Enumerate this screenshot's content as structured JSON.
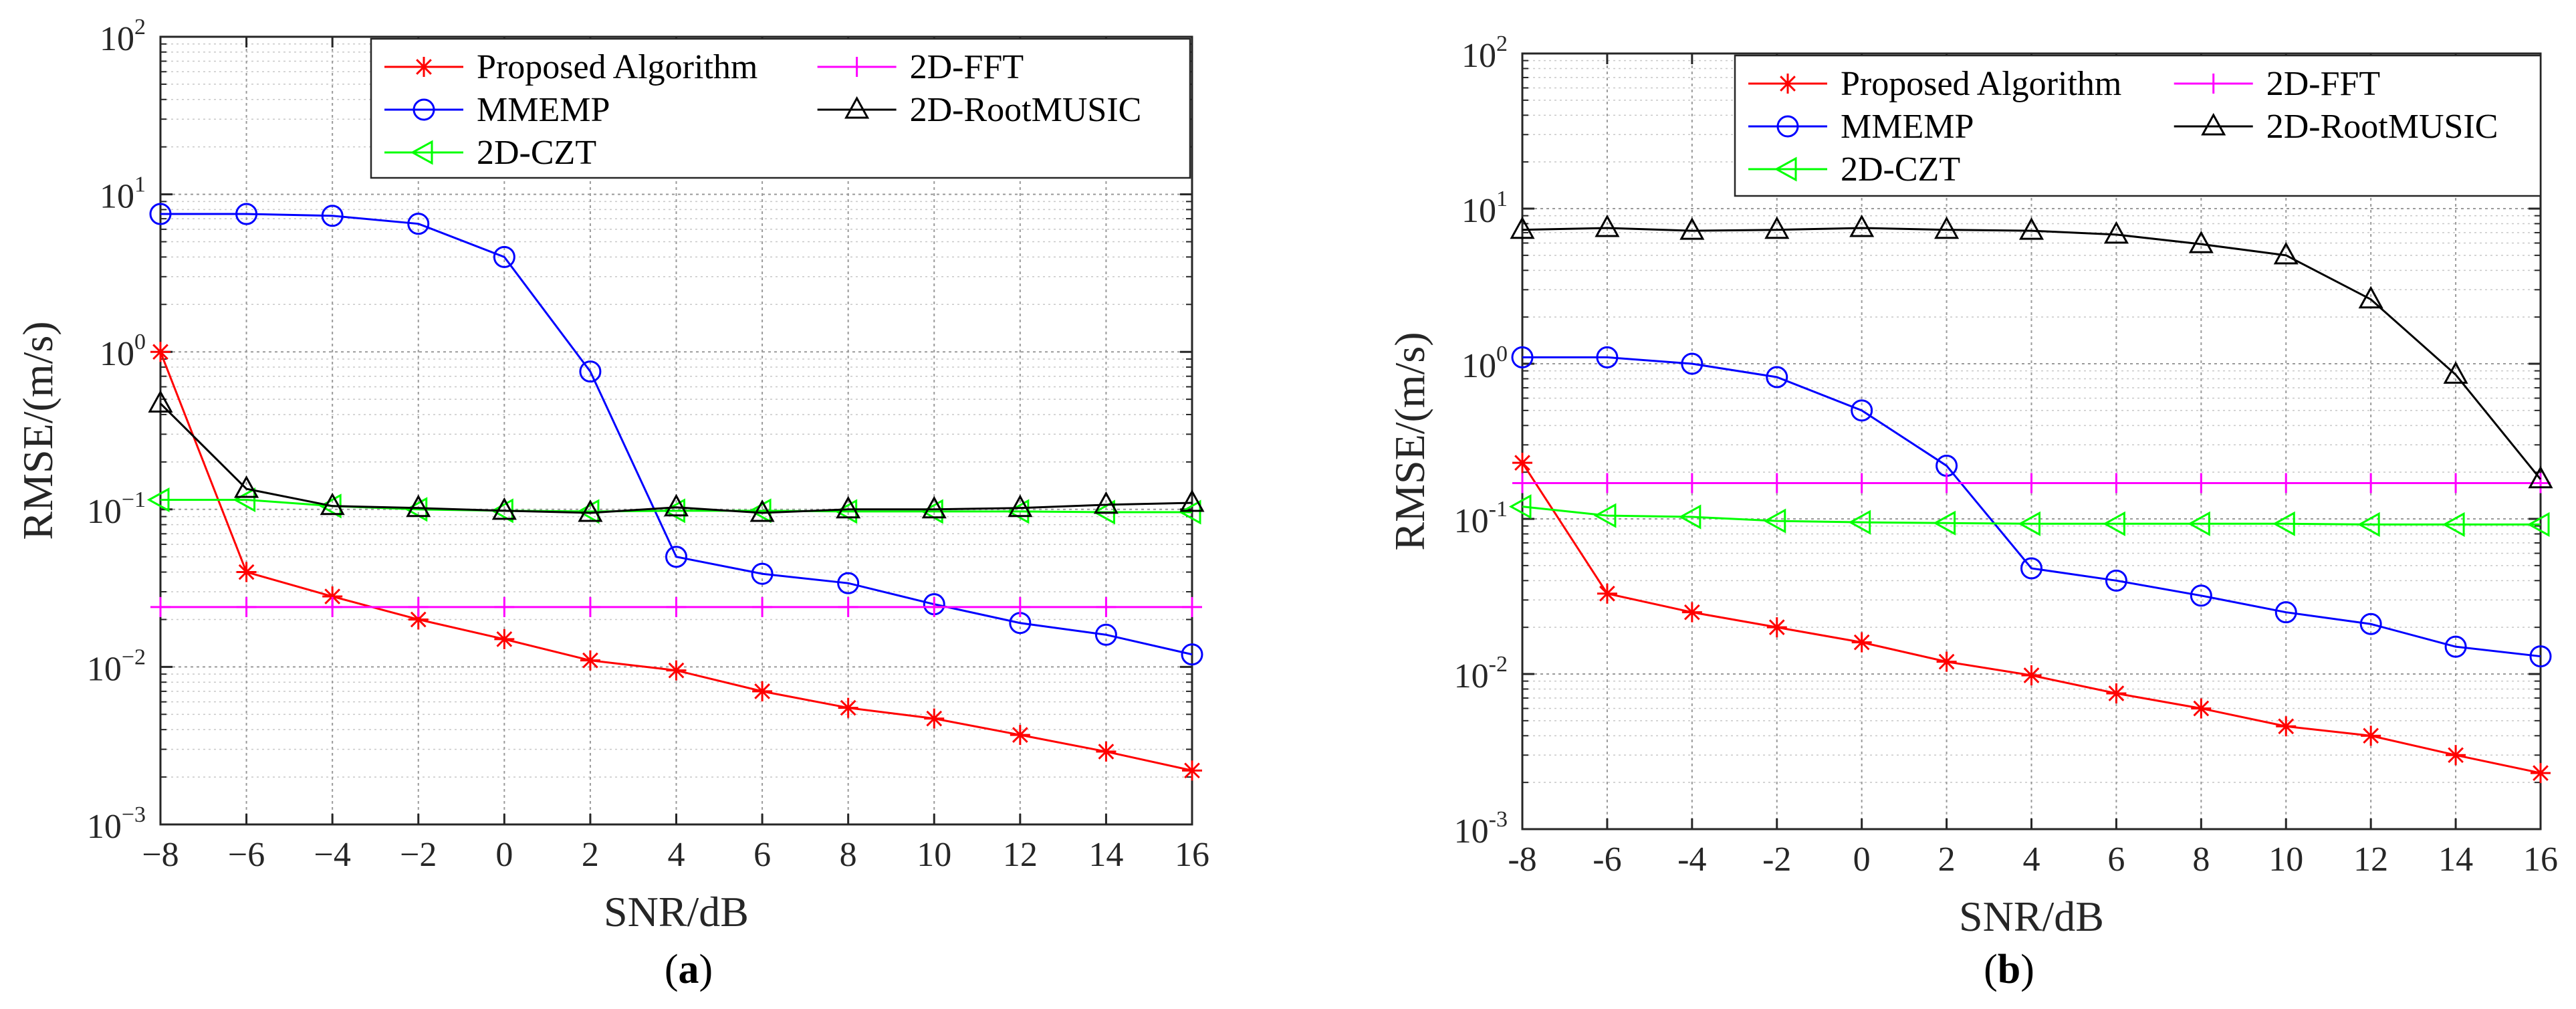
{
  "chart_data": [
    {
      "type": "line",
      "caption": "a",
      "xlabel": "SNR/dB",
      "ylabel": "RMSE/(m/s)",
      "yscale": "log",
      "ylim": [
        0.001,
        100
      ],
      "xlim": [
        -8,
        16
      ],
      "x": [
        -8,
        -6,
        -4,
        -2,
        0,
        2,
        4,
        6,
        8,
        10,
        12,
        14,
        16
      ],
      "xticks": [
        "−8",
        "−6",
        "−4",
        "−2",
        "0",
        "2",
        "4",
        "6",
        "8",
        "10",
        "12",
        "14",
        "16"
      ],
      "yticks": [
        {
          "base": "10",
          "exp": "−3"
        },
        {
          "base": "10",
          "exp": "−2"
        },
        {
          "base": "10",
          "exp": "−1"
        },
        {
          "base": "10",
          "exp": "0"
        },
        {
          "base": "10",
          "exp": "1"
        },
        {
          "base": "10",
          "exp": "2"
        }
      ],
      "grid": true,
      "legend": "top-right",
      "series": [
        {
          "name": "Proposed Algorithm",
          "color": "#ff0000",
          "marker": "star",
          "values": [
            1.0,
            0.04,
            0.028,
            0.02,
            0.015,
            0.011,
            0.0095,
            0.007,
            0.0055,
            0.0047,
            0.0037,
            0.0029,
            0.0022
          ]
        },
        {
          "name": "MMEMP",
          "color": "#0000ff",
          "marker": "circle",
          "values": [
            7.5,
            7.5,
            7.3,
            6.5,
            4.0,
            0.75,
            0.05,
            0.039,
            0.034,
            0.025,
            0.019,
            0.016,
            0.012
          ]
        },
        {
          "name": "2D-CZT",
          "color": "#00ff00",
          "marker": "triangle-left",
          "values": [
            0.115,
            0.115,
            0.105,
            0.1,
            0.098,
            0.097,
            0.098,
            0.098,
            0.097,
            0.097,
            0.097,
            0.096,
            0.096
          ]
        },
        {
          "name": "2D-FFT",
          "color": "#ff00ff",
          "marker": "plus",
          "values": [
            0.024,
            0.024,
            0.024,
            0.024,
            0.024,
            0.024,
            0.024,
            0.024,
            0.024,
            0.024,
            0.024,
            0.024,
            0.024
          ]
        },
        {
          "name": "2D-RootMUSIC",
          "color": "#000000",
          "marker": "triangle-up",
          "values": [
            0.47,
            0.135,
            0.105,
            0.102,
            0.098,
            0.095,
            0.103,
            0.095,
            0.1,
            0.1,
            0.102,
            0.107,
            0.11
          ]
        }
      ]
    },
    {
      "type": "line",
      "caption": "b",
      "xlabel": "SNR/dB",
      "ylabel": "RMSE/(m/s)",
      "yscale": "log",
      "ylim": [
        0.001,
        100
      ],
      "xlim": [
        -8,
        16
      ],
      "x": [
        -8,
        -6,
        -4,
        -2,
        0,
        2,
        4,
        6,
        8,
        10,
        12,
        14,
        16
      ],
      "xticks": [
        "-8",
        "-6",
        "-4",
        "-2",
        "0",
        "2",
        "4",
        "6",
        "8",
        "10",
        "12",
        "14",
        "16"
      ],
      "yticks": [
        {
          "base": "10",
          "exp": "-3"
        },
        {
          "base": "10",
          "exp": "-2"
        },
        {
          "base": "10",
          "exp": "-1"
        },
        {
          "base": "10",
          "exp": "0"
        },
        {
          "base": "10",
          "exp": "1"
        },
        {
          "base": "10",
          "exp": "2"
        }
      ],
      "grid": true,
      "legend": "top-right",
      "series": [
        {
          "name": "Proposed Algorithm",
          "color": "#ff0000",
          "marker": "star",
          "values": [
            0.23,
            0.033,
            0.025,
            0.02,
            0.016,
            0.012,
            0.0098,
            0.0075,
            0.006,
            0.0046,
            0.004,
            0.003,
            0.0023
          ]
        },
        {
          "name": "MMEMP",
          "color": "#0000ff",
          "marker": "circle",
          "values": [
            1.1,
            1.1,
            1.0,
            0.82,
            0.5,
            0.22,
            0.048,
            0.04,
            0.032,
            0.025,
            0.021,
            0.015,
            0.013
          ]
        },
        {
          "name": "2D-CZT",
          "color": "#00ff00",
          "marker": "triangle-left",
          "values": [
            0.12,
            0.105,
            0.103,
            0.097,
            0.095,
            0.094,
            0.093,
            0.093,
            0.093,
            0.093,
            0.092,
            0.092,
            0.092
          ]
        },
        {
          "name": "2D-FFT",
          "color": "#ff00ff",
          "marker": "plus",
          "values": [
            0.17,
            0.17,
            0.17,
            0.17,
            0.17,
            0.17,
            0.17,
            0.17,
            0.17,
            0.17,
            0.17,
            0.17,
            0.17
          ]
        },
        {
          "name": "2D-RootMUSIC",
          "color": "#000000",
          "marker": "triangle-up",
          "values": [
            7.3,
            7.5,
            7.2,
            7.3,
            7.5,
            7.3,
            7.2,
            6.8,
            5.9,
            5.0,
            2.6,
            0.85,
            0.18
          ]
        }
      ]
    }
  ]
}
